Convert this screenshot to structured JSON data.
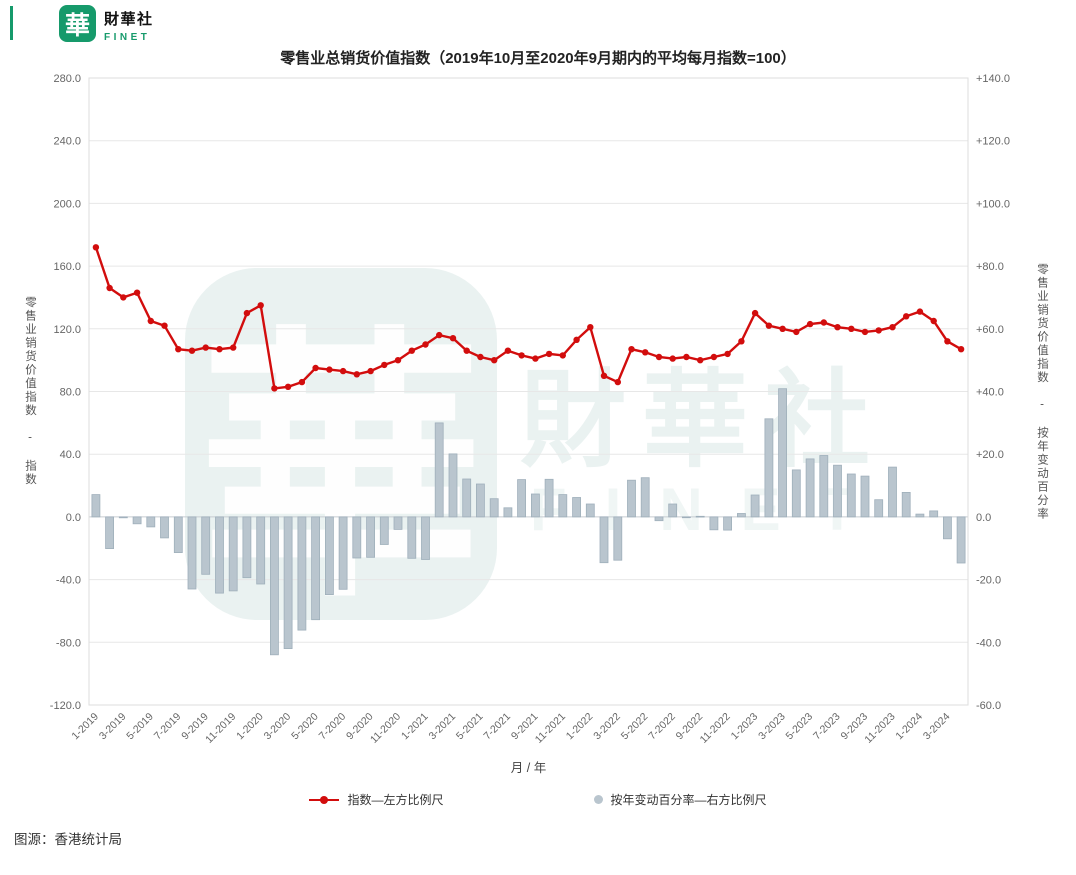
{
  "brand": {
    "logo_char": "華",
    "name_chinese": "財華社",
    "name_english": "FINET"
  },
  "title": "零售业总销货价值指数（2019年10月至2020年9月期内的平均每月指数=100）",
  "watermark": {
    "logo_char": "華",
    "text_chinese": "財華社",
    "text_english": "FINET"
  },
  "source_note": "图源：香港统计局",
  "colors": {
    "brand_green": "#169a6b",
    "line_red": "#d20d0d",
    "bar_fill": "#b9c5ce",
    "bar_border": "#9fafbb",
    "grid": "#e7e7e7",
    "axis_text": "#666666",
    "watermark_teal": "#2f8273"
  },
  "chart_data": {
    "type": "line+bar",
    "title": "零售业总销货价值指数（2019年10月至2020年9月期内的平均每月指数=100）",
    "x_label": "月 / 年",
    "grid": true,
    "legend_position": "bottom",
    "months": [
      "1-2019",
      "2-2019",
      "3-2019",
      "4-2019",
      "5-2019",
      "6-2019",
      "7-2019",
      "8-2019",
      "9-2019",
      "10-2019",
      "11-2019",
      "12-2019",
      "1-2020",
      "2-2020",
      "3-2020",
      "4-2020",
      "5-2020",
      "6-2020",
      "7-2020",
      "8-2020",
      "9-2020",
      "10-2020",
      "11-2020",
      "12-2020",
      "1-2021",
      "2-2021",
      "3-2021",
      "4-2021",
      "5-2021",
      "6-2021",
      "7-2021",
      "8-2021",
      "9-2021",
      "10-2021",
      "11-2021",
      "12-2021",
      "1-2022",
      "2-2022",
      "3-2022",
      "4-2022",
      "5-2022",
      "6-2022",
      "7-2022",
      "8-2022",
      "9-2022",
      "10-2022",
      "11-2022",
      "12-2022",
      "1-2023",
      "2-2023",
      "3-2023",
      "4-2023",
      "5-2023",
      "6-2023",
      "7-2023",
      "8-2023",
      "9-2023",
      "10-2023",
      "11-2023",
      "12-2023",
      "1-2024",
      "2-2024",
      "3-2024",
      "4-2024"
    ],
    "left_axis": {
      "title": "零售业销货价值指数 - 指数",
      "min": -120,
      "max": 280,
      "step": 40
    },
    "right_axis": {
      "title": "零售业销货价值指数 - 按年变动百分率",
      "min": -60,
      "max": 140,
      "step": 20
    },
    "series": [
      {
        "name": "指数—左方比例尺",
        "type": "line",
        "axis": "left",
        "values": [
          172,
          146,
          140,
          143,
          125,
          122,
          107,
          106,
          108,
          107,
          108,
          130,
          135,
          82,
          83,
          86,
          95,
          94,
          93,
          91,
          93,
          97,
          100,
          106,
          110,
          116,
          114,
          106,
          102,
          100,
          106,
          103,
          101,
          104,
          103,
          113,
          121,
          90,
          86,
          107,
          105,
          102,
          101,
          102,
          100,
          102,
          104,
          112,
          130,
          122,
          120,
          118,
          123,
          124,
          121,
          120,
          118,
          119,
          121,
          128,
          131,
          125,
          112,
          107
        ]
      },
      {
        "name": "按年变动百分率—右方比例尺",
        "type": "bar",
        "axis": "right",
        "values": [
          7.1,
          -10.1,
          -0.3,
          -2.2,
          -3.2,
          -6.7,
          -11.4,
          -23.0,
          -18.3,
          -24.3,
          -23.6,
          -19.4,
          -21.4,
          -44.0,
          -42.0,
          -36.1,
          -32.8,
          -24.8,
          -23.1,
          -13.1,
          -12.9,
          -8.8,
          -4.0,
          -13.2,
          -13.6,
          30.0,
          20.1,
          12.1,
          10.5,
          5.8,
          2.9,
          11.9,
          7.3,
          12.0,
          7.1,
          6.2,
          4.1,
          -14.6,
          -13.8,
          11.7,
          12.5,
          -1.2,
          4.1,
          -0.1,
          0.2,
          -4.1,
          -4.2,
          1.1,
          7.0,
          31.3,
          40.9,
          15.0,
          18.5,
          19.6,
          16.5,
          13.7,
          13.0,
          5.5,
          15.9,
          7.8,
          0.9,
          1.9,
          -7.0,
          -14.7
        ]
      }
    ],
    "legend": [
      {
        "label": "指数—左方比例尺",
        "marker": "line-dot"
      },
      {
        "label": "按年变动百分率—右方比例尺",
        "marker": "dot"
      }
    ]
  }
}
